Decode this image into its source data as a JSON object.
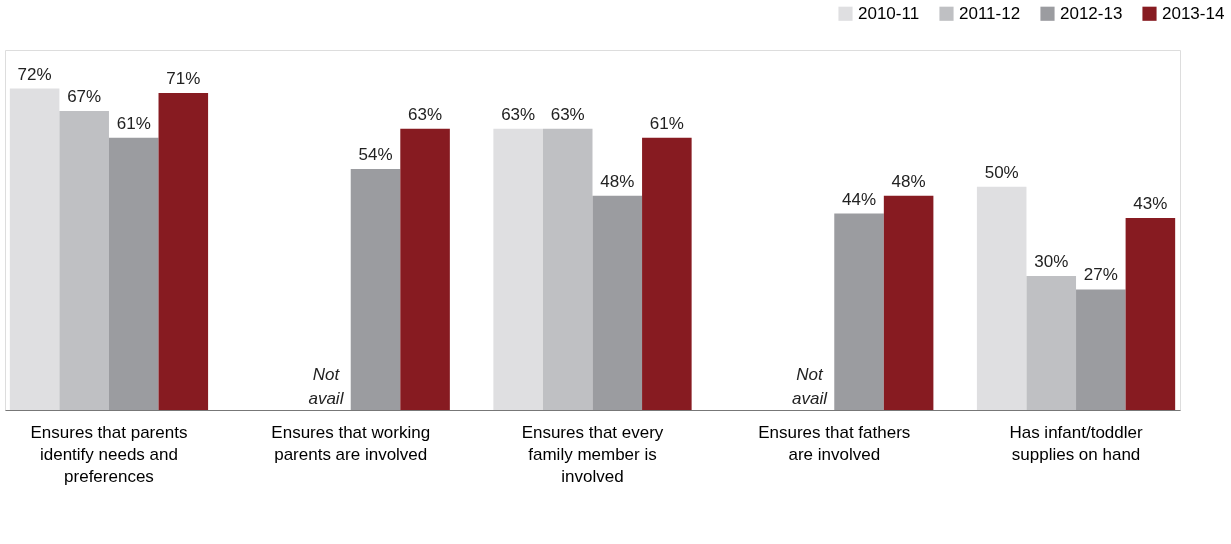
{
  "chart_data": {
    "type": "bar",
    "categories": [
      "Ensures that parents identify needs and preferences",
      "Ensures that working parents are involved",
      "Ensures that every family member is involved",
      "Ensures that fathers are involved",
      "Has infant/toddler supplies on hand"
    ],
    "series": [
      {
        "name": "2010-11",
        "color": "#dfdfe1",
        "values": [
          72,
          null,
          63,
          null,
          50
        ],
        "value_labels": [
          "72%",
          null,
          "63%",
          null,
          "50%"
        ]
      },
      {
        "name": "2011-12",
        "color": "#bfc0c3",
        "values": [
          67,
          null,
          63,
          null,
          30
        ],
        "value_labels": [
          "67%",
          null,
          "63%",
          null,
          "30%"
        ]
      },
      {
        "name": "2012-13",
        "color": "#9b9ca0",
        "values": [
          61,
          54,
          48,
          44,
          27
        ],
        "value_labels": [
          "61%",
          "54%",
          "48%",
          "44%",
          "27%"
        ]
      },
      {
        "name": "2013-14",
        "color": "#871b21",
        "values": [
          71,
          63,
          61,
          48,
          43
        ],
        "value_labels": [
          "71%",
          "63%",
          "61%",
          "48%",
          "43%"
        ]
      }
    ],
    "annotations": [
      {
        "text": "Not avail",
        "x": "Ensures that working parents are involved"
      },
      {
        "text": "Not avail",
        "x": "Ensures that fathers are involved"
      }
    ],
    "legend": "top right",
    "grid": false
  }
}
